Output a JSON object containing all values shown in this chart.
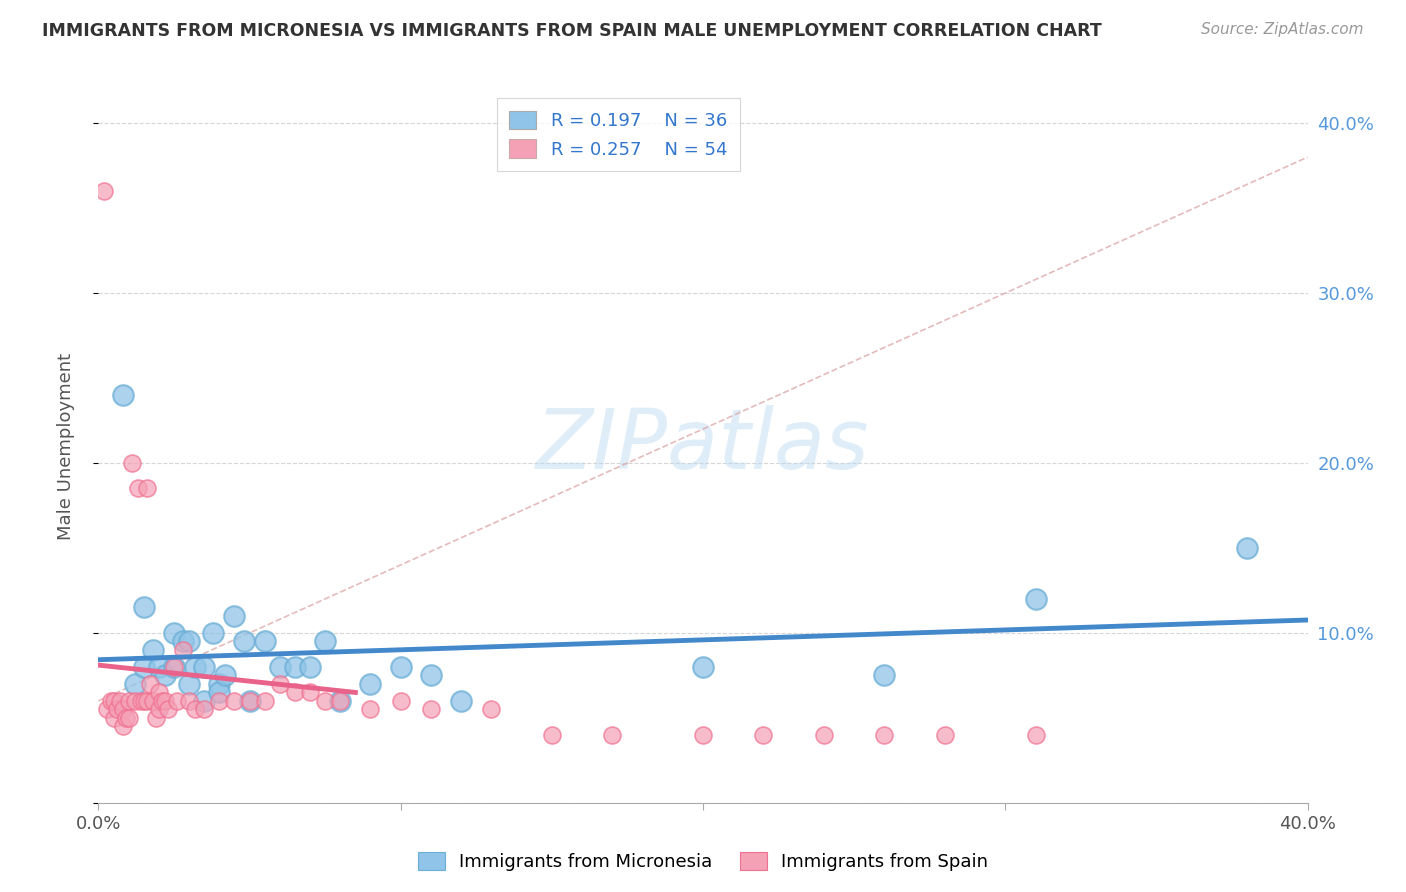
{
  "title": "IMMIGRANTS FROM MICRONESIA VS IMMIGRANTS FROM SPAIN MALE UNEMPLOYMENT CORRELATION CHART",
  "source_text": "Source: ZipAtlas.com",
  "ylabel": "Male Unemployment",
  "xlim": [
    0.0,
    0.4
  ],
  "ylim": [
    0.0,
    0.42
  ],
  "legend_r1": "R = 0.197",
  "legend_n1": "N = 36",
  "legend_r2": "R = 0.257",
  "legend_n2": "N = 54",
  "blue_color": "#90c4e8",
  "pink_color": "#f4a0b5",
  "blue_edge_color": "#6aaed6",
  "pink_edge_color": "#f07090",
  "blue_line_color": "#4488cc",
  "pink_line_color": "#e8628a",
  "diag_color": "#ddaaaa",
  "watermark": "ZIPatlas",
  "bg_color": "#ffffff",
  "grid_color": "#cccccc",
  "micronesia_x": [
    0.008,
    0.012,
    0.015,
    0.015,
    0.018,
    0.02,
    0.022,
    0.025,
    0.025,
    0.028,
    0.03,
    0.03,
    0.032,
    0.035,
    0.035,
    0.038,
    0.04,
    0.04,
    0.042,
    0.045,
    0.048,
    0.05,
    0.055,
    0.06,
    0.065,
    0.07,
    0.075,
    0.08,
    0.09,
    0.1,
    0.11,
    0.12,
    0.2,
    0.26,
    0.31,
    0.38
  ],
  "micronesia_y": [
    0.24,
    0.07,
    0.115,
    0.08,
    0.09,
    0.08,
    0.075,
    0.1,
    0.08,
    0.095,
    0.095,
    0.07,
    0.08,
    0.08,
    0.06,
    0.1,
    0.07,
    0.065,
    0.075,
    0.11,
    0.095,
    0.06,
    0.095,
    0.08,
    0.08,
    0.08,
    0.095,
    0.06,
    0.07,
    0.08,
    0.075,
    0.06,
    0.08,
    0.075,
    0.12,
    0.15
  ],
  "spain_x": [
    0.002,
    0.003,
    0.004,
    0.005,
    0.005,
    0.006,
    0.007,
    0.008,
    0.008,
    0.009,
    0.01,
    0.01,
    0.011,
    0.012,
    0.013,
    0.014,
    0.015,
    0.016,
    0.016,
    0.017,
    0.018,
    0.019,
    0.02,
    0.02,
    0.021,
    0.022,
    0.023,
    0.025,
    0.026,
    0.028,
    0.03,
    0.032,
    0.035,
    0.04,
    0.045,
    0.05,
    0.055,
    0.06,
    0.065,
    0.07,
    0.075,
    0.08,
    0.09,
    0.1,
    0.11,
    0.13,
    0.15,
    0.17,
    0.2,
    0.22,
    0.24,
    0.26,
    0.28,
    0.31
  ],
  "spain_y": [
    0.36,
    0.055,
    0.06,
    0.06,
    0.05,
    0.055,
    0.06,
    0.055,
    0.045,
    0.05,
    0.06,
    0.05,
    0.2,
    0.06,
    0.185,
    0.06,
    0.06,
    0.185,
    0.06,
    0.07,
    0.06,
    0.05,
    0.065,
    0.055,
    0.06,
    0.06,
    0.055,
    0.08,
    0.06,
    0.09,
    0.06,
    0.055,
    0.055,
    0.06,
    0.06,
    0.06,
    0.06,
    0.07,
    0.065,
    0.065,
    0.06,
    0.06,
    0.055,
    0.06,
    0.055,
    0.055,
    0.04,
    0.04,
    0.04,
    0.04,
    0.04,
    0.04,
    0.04,
    0.04
  ]
}
